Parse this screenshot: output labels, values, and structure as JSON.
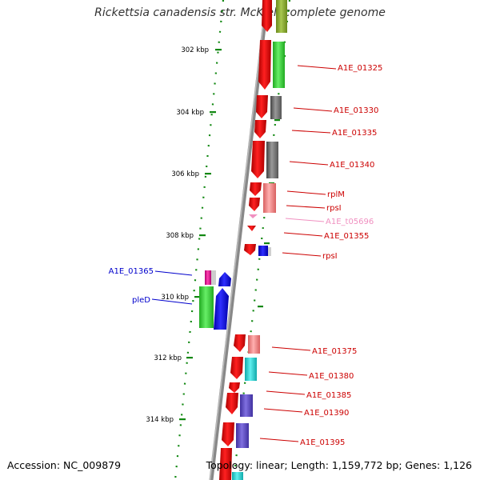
{
  "title": "Rickettsia canadensis str. McKiel, complete genome",
  "accession": "Accession: NC_009879",
  "summary": "Topology: linear; Length: 1,159,772 bp; Genes: 1,126",
  "ruler": [
    "302 kbp",
    "304 kbp",
    "306 kbp",
    "308 kbp",
    "310 kbp",
    "312 kbp",
    "314 kbp"
  ],
  "genes": [
    {
      "label": "A1E_01325",
      "color": "#cc0000"
    },
    {
      "label": "A1E_01330",
      "color": "#cc0000"
    },
    {
      "label": "A1E_01335",
      "color": "#cc0000"
    },
    {
      "label": "A1E_01340",
      "color": "#cc0000"
    },
    {
      "label": "rplM",
      "color": "#cc0000"
    },
    {
      "label": "rpsI",
      "color": "#cc0000"
    },
    {
      "label": "A1E_t05696",
      "color": "#f090c0"
    },
    {
      "label": "A1E_01355",
      "color": "#cc0000"
    },
    {
      "label": "rpsI",
      "color": "#cc0000"
    },
    {
      "label": "A1E_01365",
      "color": "#0000cc"
    },
    {
      "label": "pleD",
      "color": "#0000cc"
    },
    {
      "label": "A1E_01375",
      "color": "#cc0000"
    },
    {
      "label": "A1E_01380",
      "color": "#cc0000"
    },
    {
      "label": "A1E_01385",
      "color": "#cc0000"
    },
    {
      "label": "A1E_01390",
      "color": "#cc0000"
    },
    {
      "label": "A1E_01395",
      "color": "#cc0000"
    }
  ]
}
